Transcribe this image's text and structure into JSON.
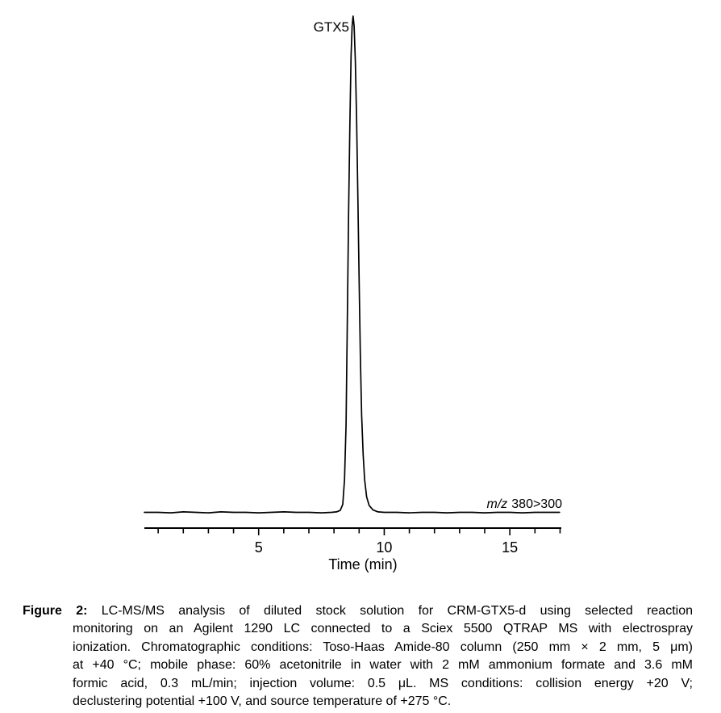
{
  "page": {
    "background_color": "#ffffff",
    "text_color": "#000000"
  },
  "chart_data": {
    "type": "line",
    "title": "",
    "xlabel": "Time (min)",
    "ylabel": "",
    "xlim": [
      0.45,
      17.05
    ],
    "ylim": [
      0,
      1
    ],
    "grid": false,
    "legend": false,
    "line_color": "#000000",
    "x_major_ticks": [
      {
        "value": 5,
        "label": "5"
      },
      {
        "value": 10,
        "label": "10"
      },
      {
        "value": 15,
        "label": "15"
      }
    ],
    "x_minor_ticks": [
      1,
      2,
      3,
      4,
      6,
      7,
      8,
      9,
      11,
      12,
      13,
      14,
      16,
      17
    ],
    "peak": {
      "label": "GTX5",
      "retention_time_min": 8.76,
      "height_relative": 1.0
    },
    "annotations": [
      {
        "italic_text": "m/z",
        "text": "380>300",
        "position": "right-end-above-baseline"
      }
    ],
    "series": [
      {
        "name": "m/z 380>300",
        "points": [
          [
            0.45,
            0.004
          ],
          [
            1,
            0.004
          ],
          [
            1.5,
            0.003
          ],
          [
            2,
            0.005
          ],
          [
            2.5,
            0.004
          ],
          [
            3,
            0.003
          ],
          [
            3.5,
            0.005
          ],
          [
            4,
            0.004
          ],
          [
            4.5,
            0.004
          ],
          [
            5,
            0.003
          ],
          [
            5.5,
            0.004
          ],
          [
            6,
            0.005
          ],
          [
            6.5,
            0.004
          ],
          [
            7,
            0.004
          ],
          [
            7.5,
            0.003
          ],
          [
            7.9,
            0.004
          ],
          [
            8.1,
            0.005
          ],
          [
            8.25,
            0.008
          ],
          [
            8.35,
            0.02
          ],
          [
            8.42,
            0.07
          ],
          [
            8.48,
            0.18
          ],
          [
            8.53,
            0.38
          ],
          [
            8.58,
            0.6
          ],
          [
            8.63,
            0.78
          ],
          [
            8.68,
            0.92
          ],
          [
            8.72,
            0.98
          ],
          [
            8.76,
            1.0
          ],
          [
            8.8,
            0.98
          ],
          [
            8.85,
            0.91
          ],
          [
            8.9,
            0.79
          ],
          [
            8.95,
            0.64
          ],
          [
            9.0,
            0.47
          ],
          [
            9.05,
            0.32
          ],
          [
            9.1,
            0.2
          ],
          [
            9.16,
            0.12
          ],
          [
            9.22,
            0.07
          ],
          [
            9.3,
            0.035
          ],
          [
            9.4,
            0.018
          ],
          [
            9.55,
            0.009
          ],
          [
            9.75,
            0.005
          ],
          [
            10,
            0.004
          ],
          [
            10.5,
            0.004
          ],
          [
            11,
            0.003
          ],
          [
            11.5,
            0.004
          ],
          [
            12,
            0.004
          ],
          [
            12.5,
            0.003
          ],
          [
            13,
            0.004
          ],
          [
            13.5,
            0.004
          ],
          [
            14,
            0.003
          ],
          [
            14.5,
            0.004
          ],
          [
            15,
            0.004
          ],
          [
            15.5,
            0.003
          ],
          [
            16,
            0.004
          ],
          [
            16.5,
            0.004
          ],
          [
            16.98,
            0.004
          ]
        ]
      }
    ]
  },
  "caption": {
    "label": "Figure 2:",
    "lines": [
      "LC-MS/MS analysis of diluted stock solution for CRM-GTX5-d using selected reaction",
      "monitoring on an Agilent 1290 LC connected to a Sciex 5500 QTRAP MS with electrospray",
      "ionization. Chromatographic conditions: Toso-Haas Amide-80 column (250 mm × 2 mm, 5 μm)",
      "at +40 °C; mobile phase: 60% acetonitrile in water with 2 mM ammonium formate and 3.6 mM",
      "formic acid, 0.3 mL/min; injection volume: 0.5 μL. MS conditions: collision energy +20 V;",
      "declustering potential +100 V, and source temperature of +275 °C."
    ]
  }
}
